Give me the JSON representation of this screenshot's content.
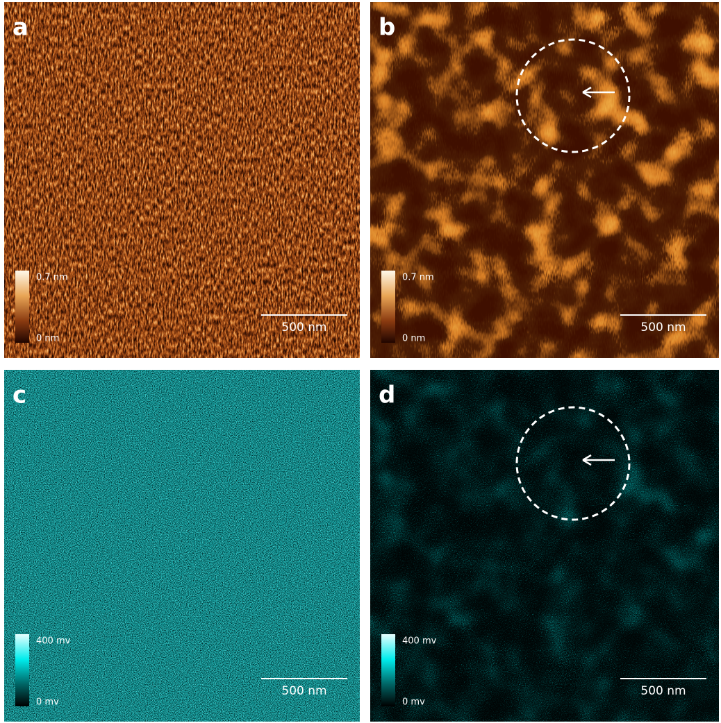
{
  "panels": [
    {
      "label": "a",
      "colorbar_max": "0.7 nm",
      "colorbar_min": "0 nm",
      "scale_bar": "500 nm"
    },
    {
      "label": "b",
      "colorbar_max": "0.7 nm",
      "colorbar_min": "0 nm",
      "scale_bar": "500 nm"
    },
    {
      "label": "c",
      "colorbar_max": "400 mv",
      "colorbar_min": "0 mv",
      "scale_bar": "500 nm"
    },
    {
      "label": "d",
      "colorbar_max": "400 mv",
      "colorbar_min": "0 mv",
      "scale_bar": "500 nm"
    }
  ]
}
